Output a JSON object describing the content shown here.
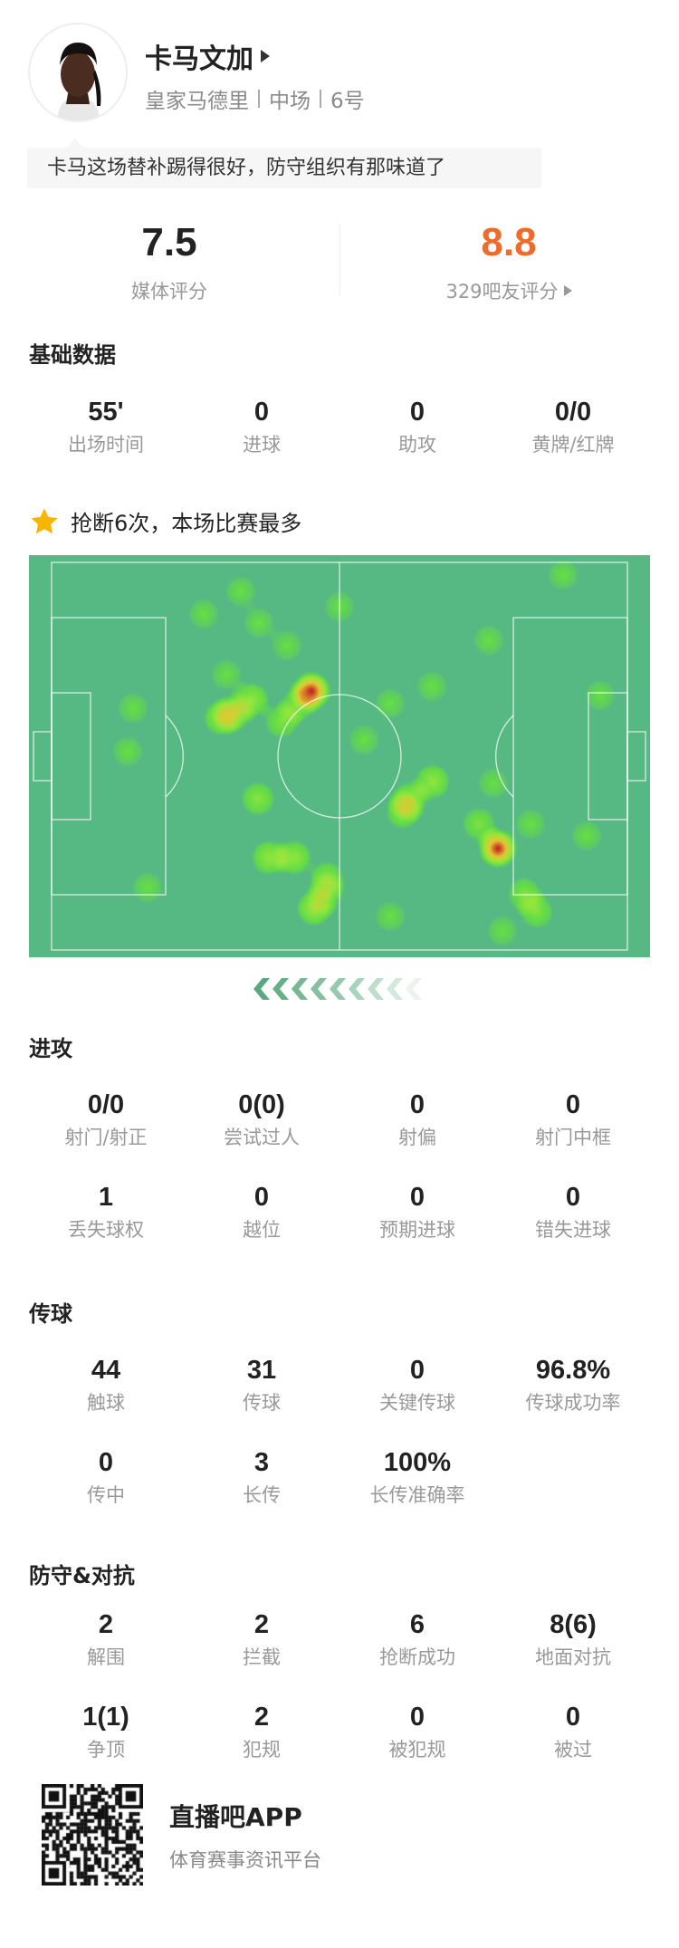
{
  "player": {
    "name": "卡马文加",
    "team": "皇家马德里",
    "position": "中场",
    "number": "6号",
    "comment": "卡马这场替补踢得很好，防守组织有那味道了"
  },
  "ratings": {
    "media": {
      "value": "7.5",
      "label": "媒体评分"
    },
    "fans": {
      "value": "8.8",
      "label": "329吧友评分"
    }
  },
  "basic": {
    "title": "基础数据",
    "stats": [
      {
        "value": "55'",
        "label": "出场时间"
      },
      {
        "value": "0",
        "label": "进球"
      },
      {
        "value": "0",
        "label": "助攻"
      },
      {
        "value": "0/0",
        "label": "黄牌/红牌"
      }
    ]
  },
  "highlight": {
    "icon": "star-icon",
    "text": "抢断6次，本场比赛最多"
  },
  "attack": {
    "title": "进攻",
    "stats": [
      {
        "value": "0/0",
        "label": "射门/射正"
      },
      {
        "value": "0(0)",
        "label": "尝试过人"
      },
      {
        "value": "0",
        "label": "射偏"
      },
      {
        "value": "0",
        "label": "射门中框"
      },
      {
        "value": "1",
        "label": "丢失球权"
      },
      {
        "value": "0",
        "label": "越位"
      },
      {
        "value": "0",
        "label": "预期进球"
      },
      {
        "value": "0",
        "label": "错失进球"
      }
    ]
  },
  "passing": {
    "title": "传球",
    "stats": [
      {
        "value": "44",
        "label": "触球"
      },
      {
        "value": "31",
        "label": "传球"
      },
      {
        "value": "0",
        "label": "关键传球"
      },
      {
        "value": "96.8%",
        "label": "传球成功率"
      },
      {
        "value": "0",
        "label": "传中"
      },
      {
        "value": "3",
        "label": "长传"
      },
      {
        "value": "100%",
        "label": "长传准确率"
      }
    ]
  },
  "defense": {
    "title": "防守&对抗",
    "stats": [
      {
        "value": "2",
        "label": "解围"
      },
      {
        "value": "2",
        "label": "拦截"
      },
      {
        "value": "6",
        "label": "抢断成功"
      },
      {
        "value": "8(6)",
        "label": "地面对抗"
      },
      {
        "value": "1(1)",
        "label": "争顶"
      },
      {
        "value": "2",
        "label": "犯规"
      },
      {
        "value": "0",
        "label": "被犯规"
      },
      {
        "value": "0",
        "label": "被过"
      }
    ]
  },
  "footer": {
    "app_name": "直播吧APP",
    "tagline": "体育赛事资讯平台"
  },
  "colors": {
    "fan_rating": "#f06a2a",
    "pitch": "#56b984",
    "star": "#f7b500",
    "chevron": "#5aa97e"
  }
}
